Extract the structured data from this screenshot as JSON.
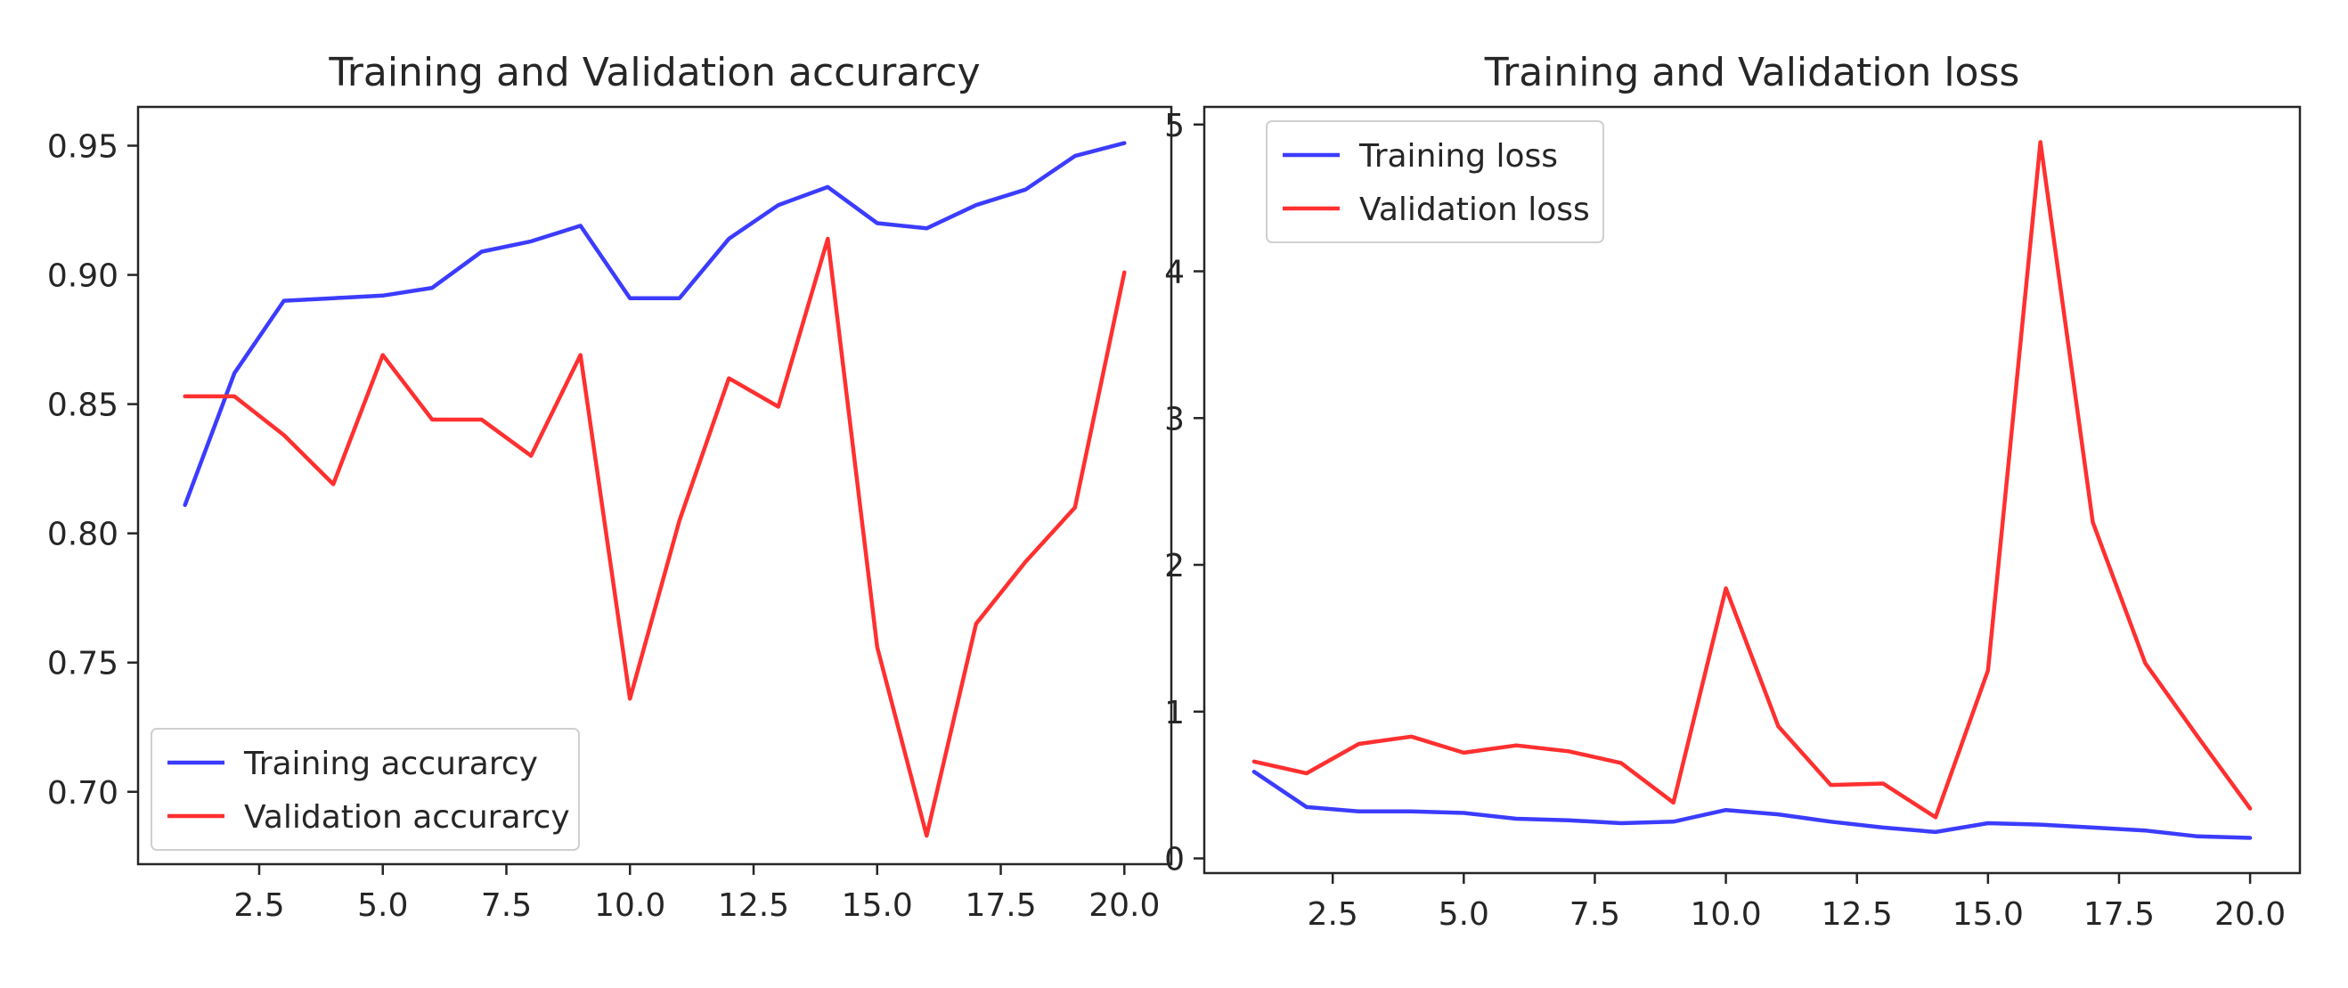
{
  "chart_data": [
    {
      "type": "line",
      "title": "Training and Validation accurarcy",
      "xlabel": "",
      "ylabel": "",
      "xlim": [
        0.05,
        20.95
      ],
      "ylim": [
        0.672,
        0.965
      ],
      "xticks": [
        2.5,
        5.0,
        7.5,
        10.0,
        12.5,
        15.0,
        17.5,
        20.0
      ],
      "xtick_labels": [
        "2.5",
        "5.0",
        "7.5",
        "10.0",
        "12.5",
        "15.0",
        "17.5",
        "20.0"
      ],
      "yticks": [
        0.7,
        0.75,
        0.8,
        0.85,
        0.9,
        0.95
      ],
      "ytick_labels": [
        "0.70",
        "0.75",
        "0.80",
        "0.85",
        "0.90",
        "0.95"
      ],
      "grid": false,
      "legend_position": "lower-left",
      "x": [
        1,
        2,
        3,
        4,
        5,
        6,
        7,
        8,
        9,
        10,
        11,
        12,
        13,
        14,
        15,
        16,
        17,
        18,
        19,
        20
      ],
      "series": [
        {
          "name": "Training accurarcy",
          "color": "#3c3cff",
          "values": [
            0.811,
            0.862,
            0.89,
            0.891,
            0.892,
            0.895,
            0.909,
            0.913,
            0.919,
            0.891,
            0.891,
            0.914,
            0.927,
            0.934,
            0.92,
            0.918,
            0.927,
            0.933,
            0.946,
            0.951
          ]
        },
        {
          "name": "Validation accurarcy",
          "color": "#ff3030",
          "values": [
            0.853,
            0.853,
            0.838,
            0.819,
            0.869,
            0.844,
            0.844,
            0.83,
            0.869,
            0.736,
            0.805,
            0.86,
            0.849,
            0.914,
            0.756,
            0.683,
            0.765,
            0.789,
            0.81,
            0.901
          ]
        }
      ]
    },
    {
      "type": "line",
      "title": "Training and Validation loss",
      "xlabel": "",
      "ylabel": "",
      "xlim": [
        0.05,
        20.95
      ],
      "ylim": [
        -0.1,
        5.12
      ],
      "xticks": [
        2.5,
        5.0,
        7.5,
        10.0,
        12.5,
        15.0,
        17.5,
        20.0
      ],
      "xtick_labels": [
        "2.5",
        "5.0",
        "7.5",
        "10.0",
        "12.5",
        "15.0",
        "17.5",
        "20.0"
      ],
      "yticks": [
        0,
        1,
        2,
        3,
        4,
        5
      ],
      "ytick_labels": [
        "0",
        "1",
        "2",
        "3",
        "4",
        "5"
      ],
      "grid": false,
      "legend_position": "upper-left",
      "x": [
        1,
        2,
        3,
        4,
        5,
        6,
        7,
        8,
        9,
        10,
        11,
        12,
        13,
        14,
        15,
        16,
        17,
        18,
        19,
        20
      ],
      "series": [
        {
          "name": "Training loss",
          "color": "#3c3cff",
          "values": [
            0.59,
            0.35,
            0.32,
            0.32,
            0.31,
            0.27,
            0.26,
            0.24,
            0.25,
            0.33,
            0.3,
            0.25,
            0.21,
            0.18,
            0.24,
            0.23,
            0.21,
            0.19,
            0.15,
            0.14
          ]
        },
        {
          "name": "Validation loss",
          "color": "#ff3030",
          "values": [
            0.66,
            0.58,
            0.78,
            0.83,
            0.72,
            0.77,
            0.73,
            0.65,
            0.38,
            1.84,
            0.9,
            0.5,
            0.51,
            0.28,
            1.28,
            4.88,
            2.29,
            1.33,
            0.83,
            0.34
          ]
        }
      ]
    }
  ]
}
